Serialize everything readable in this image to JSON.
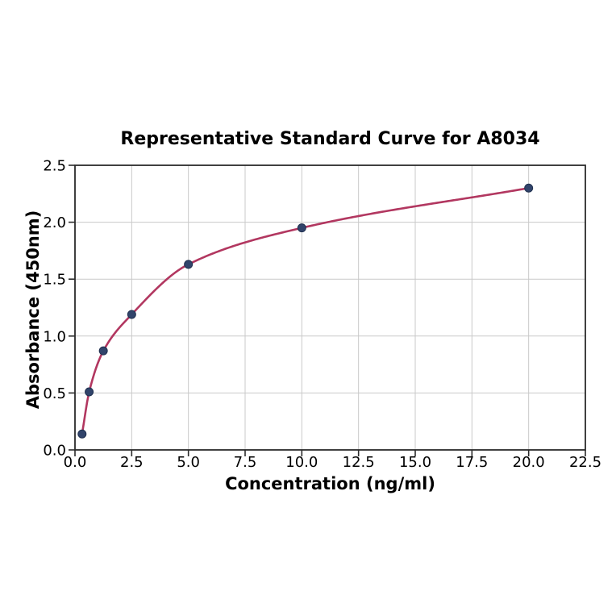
{
  "chart_data": {
    "type": "scatter",
    "title": "Representative Standard Curve for A8034",
    "xlabel": "Concentration (ng/ml)",
    "ylabel": "Absorbance (450nm)",
    "x": [
      0.3125,
      0.625,
      1.25,
      2.5,
      5.0,
      10.0,
      20.0
    ],
    "y": [
      0.14,
      0.51,
      0.87,
      1.19,
      1.63,
      1.95,
      2.3
    ],
    "xlim": [
      0,
      22.5
    ],
    "ylim": [
      0,
      2.5
    ],
    "xticks": [
      0,
      2.5,
      5,
      7.5,
      10,
      12.5,
      15,
      17.5,
      20,
      22.5
    ],
    "xtick_labels": [
      "0.0",
      "2.5",
      "5.0",
      "7.5",
      "10.0",
      "12.5",
      "15.0",
      "17.5",
      "20.0",
      "22.5"
    ],
    "yticks": [
      0,
      0.5,
      1,
      1.5,
      2,
      2.5
    ],
    "ytick_labels": [
      "0.0",
      "0.5",
      "1.0",
      "1.5",
      "2.0",
      "2.5"
    ],
    "grid": true,
    "legend_position": "none",
    "curve": {
      "style": "smooth-fit-line",
      "color": "#b23760",
      "width": 2.6
    },
    "marker": {
      "shape": "circle",
      "color": "#31446b",
      "edge_color": "#20304f",
      "radius": 5
    },
    "colors": {
      "grid": "#c9c9c9",
      "axis": "#2b2b2b",
      "background": "#ffffff",
      "text": "#000000"
    }
  }
}
